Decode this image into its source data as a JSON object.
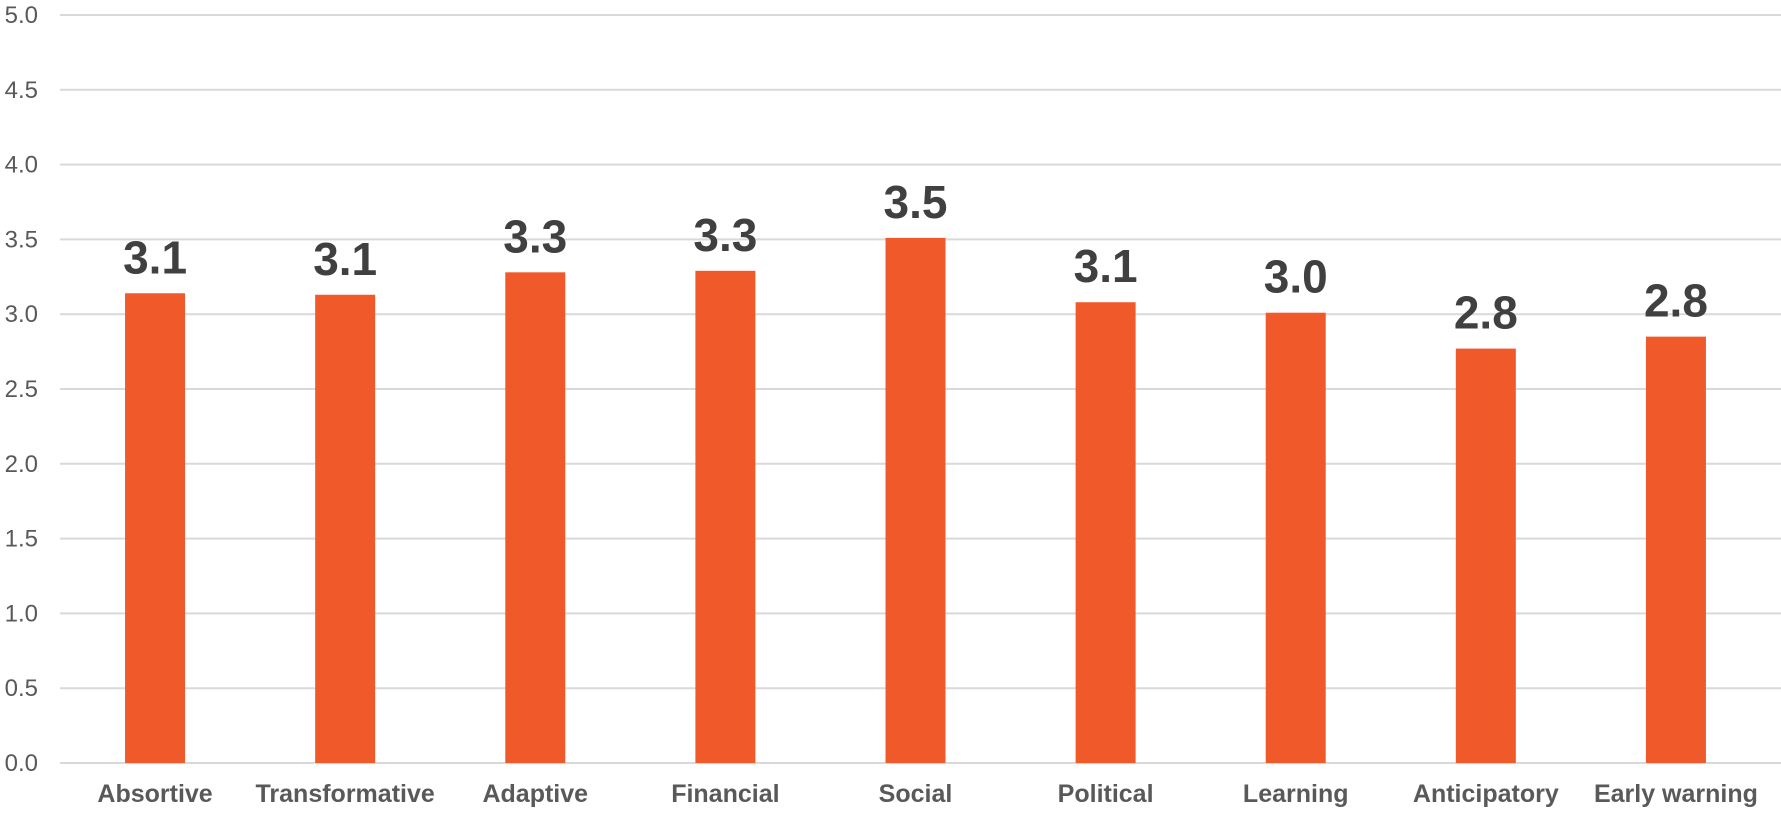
{
  "chart_data": {
    "type": "bar",
    "categories": [
      "Absortive",
      "Transformative",
      "Adaptive",
      "Financial",
      "Social",
      "Political",
      "Learning",
      "Anticipatory",
      "Early warning"
    ],
    "values": [
      3.14,
      3.13,
      3.28,
      3.29,
      3.51,
      3.08,
      3.01,
      2.77,
      2.85
    ],
    "data_labels": [
      "3.1",
      "3.1",
      "3.3",
      "3.3",
      "3.5",
      "3.1",
      "3.0",
      "2.8",
      "2.8"
    ],
    "yticks": [
      "0.0",
      "0.5",
      "1.0",
      "1.5",
      "2.0",
      "2.5",
      "3.0",
      "3.5",
      "4.0",
      "4.5",
      "5.0"
    ],
    "ylim": [
      0,
      5
    ],
    "grid": true,
    "legend": "none",
    "bar_color": "#f05a2b",
    "title": "",
    "xlabel": "",
    "ylabel": ""
  }
}
